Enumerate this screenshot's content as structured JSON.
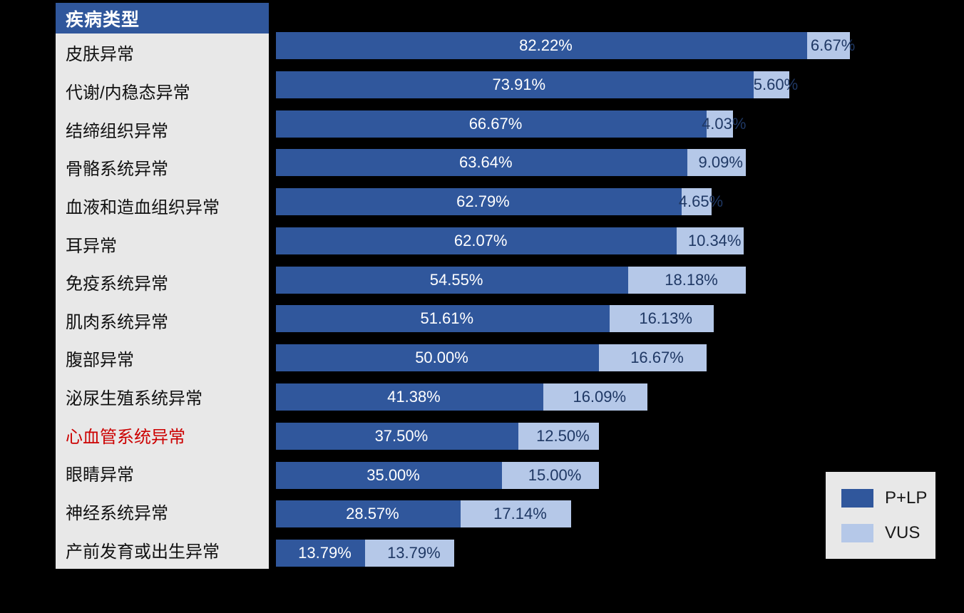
{
  "chart_data": {
    "type": "bar",
    "orientation": "horizontal",
    "stacked": true,
    "title": "疾病类型",
    "categories": [
      "皮肤异常",
      "代谢/内稳态异常",
      "结缔组织异常",
      "骨骼系统异常",
      "血液和造血组织异常",
      "耳异常",
      "免疫系统异常",
      "肌肉系统异常",
      "腹部异常",
      "泌尿生殖系统异常",
      "心血管系统异常",
      "眼睛异常",
      "神经系统异常",
      "产前发育或出生异常"
    ],
    "highlight_category": "心血管系统异常",
    "highlight_color": "#cc0000",
    "series": [
      {
        "name": "P+LP",
        "color": "#30579c",
        "values": [
          82.22,
          73.91,
          66.67,
          63.64,
          62.79,
          62.07,
          54.55,
          51.61,
          50.0,
          41.38,
          37.5,
          35.0,
          28.57,
          13.79
        ]
      },
      {
        "name": "VUS",
        "color": "#b5c8e8",
        "values": [
          6.67,
          5.6,
          4.03,
          9.09,
          4.65,
          10.34,
          18.18,
          16.13,
          16.67,
          16.09,
          12.5,
          15.0,
          17.14,
          13.79
        ]
      }
    ],
    "labels": {
      "plp": [
        "82.22%",
        "73.91%",
        "66.67%",
        "63.64%",
        "62.79%",
        "62.07%",
        "54.55%",
        "51.61%",
        "50.00%",
        "41.38%",
        "37.50%",
        "35.00%",
        "28.57%",
        "13.79%"
      ],
      "vus": [
        "6.67%",
        "5.60%",
        "4.03%",
        "9.09%",
        "4.65%",
        "10.34%",
        "18.18%",
        "16.13%",
        "16.67%",
        "16.09%",
        "12.50%",
        "15.00%",
        "17.14%",
        "13.79%"
      ]
    },
    "xlim": [
      0,
      100
    ],
    "grid": false,
    "legend_position": "bottom-right",
    "value_label_colors": {
      "plp": "#ffffff",
      "vus": "#1f3864"
    }
  },
  "legend": {
    "items": [
      {
        "label": "P+LP",
        "color": "#30579c"
      },
      {
        "label": "VUS",
        "color": "#b5c8e8"
      }
    ]
  },
  "colors": {
    "background": "#000000",
    "table_header": "#30579c",
    "table_body": "#e8e8e8",
    "header_text": "#ffffff",
    "category_text": "#111111"
  }
}
